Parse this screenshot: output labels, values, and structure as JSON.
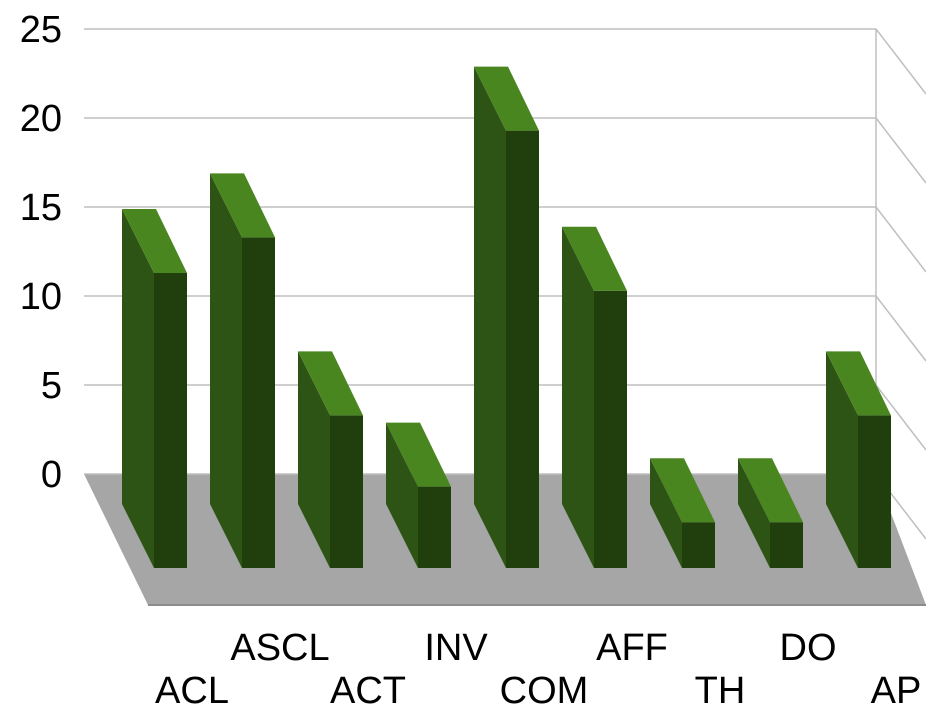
{
  "chart_data": {
    "type": "bar",
    "categories": [
      "ACL",
      "ASCL",
      "ACT",
      "INV",
      "COM",
      "AFF",
      "TH",
      "DO",
      "AP"
    ],
    "values": [
      15,
      17,
      7,
      3,
      23,
      14,
      1,
      1,
      7
    ],
    "ylim": [
      0,
      25
    ],
    "yticks": [
      "0",
      "5",
      "10",
      "15",
      "20",
      "25"
    ],
    "grid": true,
    "legend": "none",
    "colors": {
      "bar_front": "#2d5414",
      "bar_side": "#203f0c",
      "bar_top": "#4a8620",
      "floor": "#a6a6a6",
      "grid": "#bfbfbf"
    }
  }
}
